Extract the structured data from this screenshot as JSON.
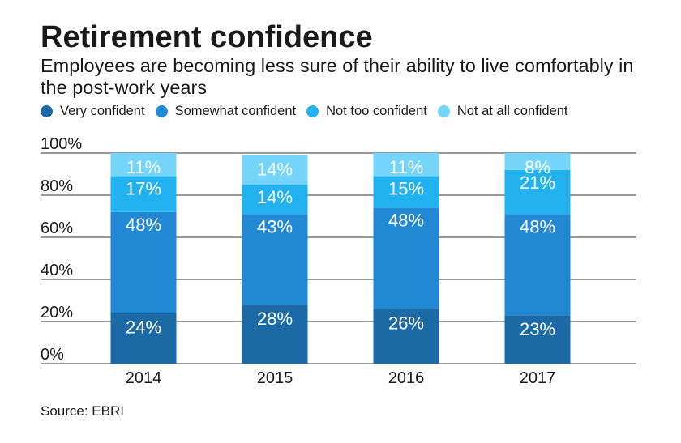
{
  "chart_data": {
    "type": "bar",
    "stacked": true,
    "title": "Retirement confidence",
    "subtitle": "Employees are becoming less sure of their ability to live comfortably in the post-work years",
    "categories": [
      "2014",
      "2015",
      "2016",
      "2017"
    ],
    "series": [
      {
        "name": "Very confident",
        "color": "#1b6aa5",
        "values": [
          24,
          28,
          26,
          23
        ],
        "labels": [
          "24%",
          "28%",
          "26%",
          "23%"
        ]
      },
      {
        "name": "Somewhat confident",
        "color": "#2188d4",
        "values": [
          48,
          43,
          48,
          48
        ],
        "labels": [
          "48%",
          "43%",
          "48%",
          "48%"
        ]
      },
      {
        "name": "Not too confident",
        "color": "#21b2ef",
        "values": [
          17,
          14,
          15,
          21
        ],
        "labels": [
          "17%",
          "14%",
          "15%",
          "21%"
        ]
      },
      {
        "name": "Not at all confident",
        "color": "#74d4fa",
        "values": [
          11,
          14,
          11,
          8
        ],
        "labels": [
          "11%",
          "14%",
          "11%",
          "8%"
        ]
      }
    ],
    "yticks": [
      "0%",
      "20%",
      "40%",
      "60%",
      "80%",
      "100%"
    ],
    "ylim": [
      0,
      100
    ],
    "xlabel": "",
    "ylabel": "",
    "grid": true,
    "legend_position": "top-left",
    "source": "Source: EBRI"
  }
}
